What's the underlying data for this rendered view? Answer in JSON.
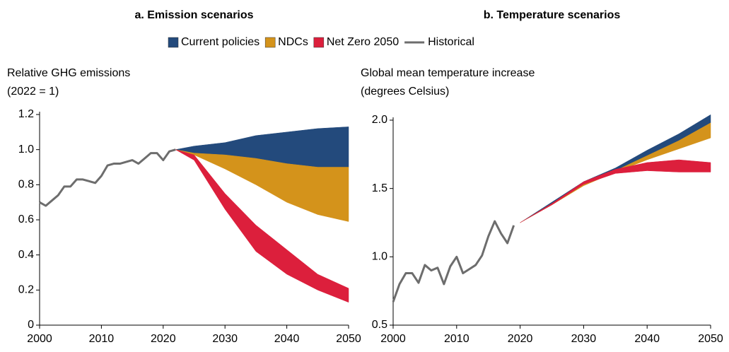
{
  "chart_data": [
    {
      "type": "band-line",
      "title": "a. Emission scenarios",
      "ylabel": [
        "Relative GHG emissions",
        "(2022 = 1)"
      ],
      "xlim": [
        2000,
        2050
      ],
      "xticks": [
        2000,
        2010,
        2020,
        2030,
        2040,
        2050
      ],
      "ylim": [
        0,
        1.2
      ],
      "yticks": [
        0,
        0.2,
        0.4,
        0.6,
        0.8,
        {
          "value": 1.0,
          "label": "1.0"
        },
        1.2
      ],
      "x": [
        2022,
        2025,
        2030,
        2035,
        2040,
        2045,
        2050
      ],
      "series": [
        {
          "name": "Current policies",
          "color": "#234a7c",
          "values": [
            1.0,
            1.02,
            1.04,
            1.08,
            1.1,
            1.12,
            1.13
          ],
          "lower": [
            1.0,
            0.98,
            0.97,
            0.95,
            0.92,
            0.9,
            0.9
          ]
        },
        {
          "name": "NDCs",
          "color": "#d4931b",
          "values": [
            1.0,
            0.98,
            0.97,
            0.95,
            0.92,
            0.9,
            0.9
          ],
          "lower": [
            1.0,
            0.97,
            0.89,
            0.8,
            0.7,
            0.63,
            0.59
          ]
        },
        {
          "name": "Net Zero 2050",
          "color": "#dc1f3c",
          "values": [
            1.0,
            0.97,
            0.75,
            0.57,
            0.43,
            0.29,
            0.21
          ],
          "lower": [
            1.0,
            0.94,
            0.66,
            0.42,
            0.29,
            0.2,
            0.13
          ]
        }
      ],
      "historical": {
        "name": "Historical",
        "color": "#6d6d6d",
        "x": [
          2000,
          2001,
          2002,
          2003,
          2004,
          2005,
          2006,
          2007,
          2008,
          2009,
          2010,
          2011,
          2012,
          2013,
          2014,
          2015,
          2016,
          2017,
          2018,
          2019,
          2020,
          2021,
          2022
        ],
        "values": [
          0.7,
          0.68,
          0.71,
          0.74,
          0.79,
          0.79,
          0.83,
          0.83,
          0.82,
          0.81,
          0.85,
          0.91,
          0.92,
          0.92,
          0.93,
          0.94,
          0.92,
          0.95,
          0.98,
          0.98,
          0.94,
          0.99,
          1.0
        ]
      }
    },
    {
      "type": "band-line",
      "title": "b. Temperature scenarios",
      "ylabel": [
        "Global mean temperature increase",
        "(degrees Celsius)"
      ],
      "xlim": [
        2000,
        2050
      ],
      "xticks": [
        2000,
        2010,
        2020,
        2030,
        2040,
        2050
      ],
      "ylim": [
        0.5,
        2.0
      ],
      "yticks": [
        0.5,
        {
          "value": 1.0,
          "label": "1.0"
        },
        1.5,
        {
          "value": 2.0,
          "label": "2.0"
        }
      ],
      "x": [
        2020,
        2025,
        2030,
        2035,
        2040,
        2045,
        2050
      ],
      "series": [
        {
          "values": [
            1.25,
            1.4,
            1.55,
            1.65,
            1.78,
            1.9,
            2.04
          ],
          "lower": [
            1.25,
            1.39,
            1.53,
            1.63,
            1.74,
            1.85,
            1.98
          ]
        },
        {
          "values": [
            1.25,
            1.39,
            1.53,
            1.63,
            1.74,
            1.85,
            1.98
          ],
          "lower": [
            1.25,
            1.38,
            1.52,
            1.62,
            1.71,
            1.79,
            1.87
          ]
        },
        {
          "values": [
            1.25,
            1.39,
            1.55,
            1.64,
            1.69,
            1.71,
            1.69
          ],
          "lower": [
            1.25,
            1.38,
            1.53,
            1.61,
            1.63,
            1.62,
            1.62
          ]
        }
      ],
      "historical": {
        "x": [
          2000,
          2001,
          2002,
          2003,
          2004,
          2005,
          2006,
          2007,
          2008,
          2009,
          2010,
          2011,
          2012,
          2013,
          2014,
          2015,
          2016,
          2017,
          2018,
          2019
        ],
        "values": [
          0.67,
          0.8,
          0.88,
          0.88,
          0.81,
          0.94,
          0.9,
          0.92,
          0.8,
          0.93,
          1.0,
          0.88,
          0.91,
          0.94,
          1.01,
          1.15,
          1.26,
          1.17,
          1.1,
          1.23
        ]
      }
    }
  ]
}
